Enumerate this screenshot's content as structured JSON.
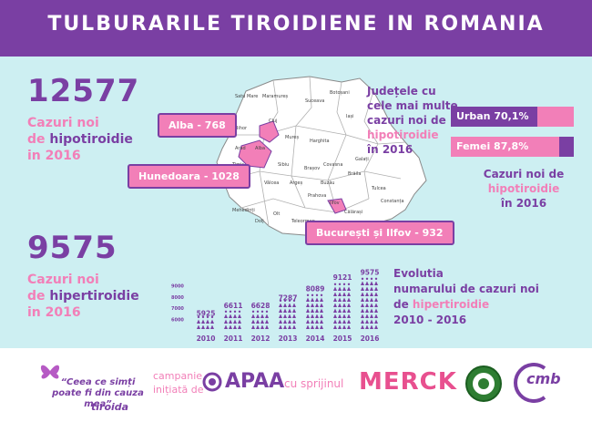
{
  "header": {
    "title": "TULBURARILE TIROIDIENE IN ROMANIA"
  },
  "hypo": {
    "number": "12577",
    "line1": "Cazuri noi",
    "line2_prefix": "de ",
    "line2_bold": "hipotiroidie",
    "line3": "in 2016"
  },
  "hyper": {
    "number": "9575",
    "line1": "Cazuri noi",
    "line2_prefix": "de ",
    "line2_bold": "hipertiroidie",
    "line3": "in 2016"
  },
  "map_labels": {
    "alba": "Alba - 768",
    "hunedoara": "Hunedoara - 1028",
    "bucuresti": "București și Ilfov - 932"
  },
  "map_counties": [
    "Satu Mare",
    "Maramureș",
    "Suceava",
    "Botoșani",
    "Bihor",
    "Cluj",
    "Iași",
    "Mureș",
    "Harghita",
    "Arad",
    "Alba",
    "Sibiu",
    "Brașov",
    "Covasna",
    "Galați",
    "Brăila",
    "Timiș",
    "Vâlcea",
    "Argeș",
    "Buzău",
    "Tulcea",
    "Mehedinți",
    "Dolj",
    "Olt",
    "Teleorman",
    "Călărași",
    "Constanța",
    "Prahova",
    "Ilfov"
  ],
  "rhs_title": {
    "line1": "Județele cu",
    "line2": "cele mai multe",
    "line3": "cazuri noi de",
    "line4": "hipotiroidie",
    "line5": "în 2016"
  },
  "bars": [
    {
      "label": "Urban 70,1%",
      "pct": 0.701,
      "color": "#7a3fa3",
      "rest": "#f27fb8"
    },
    {
      "label": "Femei 87,8%",
      "pct": 0.878,
      "color": "#f27fb8",
      "rest": "#7a3fa3"
    }
  ],
  "rhs2": {
    "line1": "Cazuri noi de",
    "line2": "hipotiroidie",
    "line3": "în 2016"
  },
  "evolution": {
    "line1": "Evolutia",
    "line2": "numarului de cazuri noi",
    "line3_prefix": "de ",
    "line3_bold": "hipertiroidie",
    "line4": "2010 - 2016"
  },
  "chart_data": {
    "type": "bar",
    "categories": [
      "2010",
      "2011",
      "2012",
      "2013",
      "2014",
      "2015",
      "2016"
    ],
    "values": [
      5925,
      6611,
      6628,
      7287,
      8089,
      9121,
      9575
    ],
    "y_ticks": [
      "9000",
      "8000",
      "7000",
      "6000"
    ],
    "ylim": [
      5000,
      10000
    ]
  },
  "footer": {
    "quote1": "“Ceea ce simți",
    "quote2": "poate fi din cauza mea”",
    "brand": "tiroida",
    "campaign1": "campanie",
    "campaign2": "inițiată de",
    "apaa": "APAA",
    "with": "cu sprijinul",
    "merck": "MERCK",
    "cmb": "cmb"
  }
}
